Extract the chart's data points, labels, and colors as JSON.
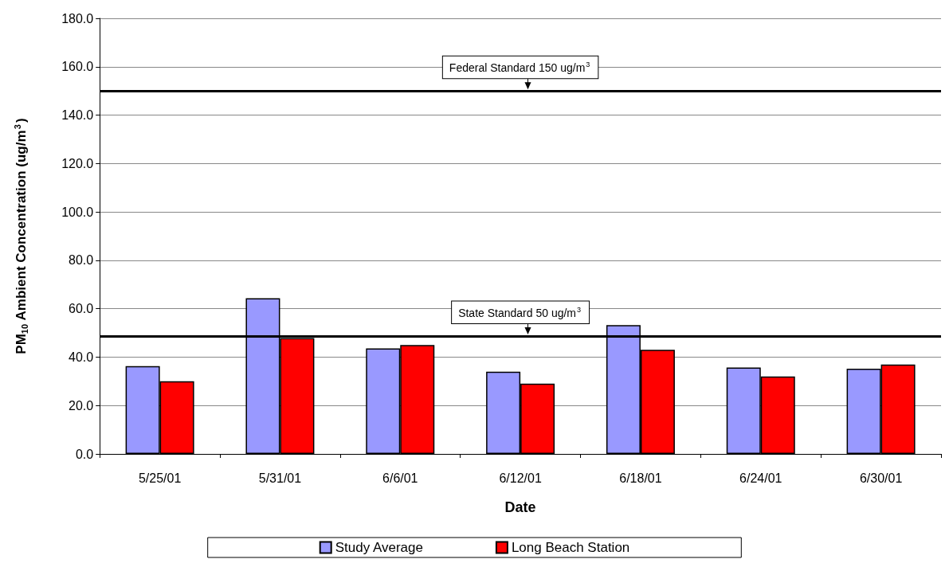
{
  "chart_data": {
    "type": "bar",
    "xlabel": "Date",
    "ylabel": "PM$_{10}$ Ambient Concentration (ug/m$^{3}$)",
    "categories": [
      "5/25/01",
      "5/31/01",
      "6/6/01",
      "6/12/01",
      "6/18/01",
      "6/24/01",
      "6/30/01"
    ],
    "series": [
      {
        "name": "Study Average",
        "color": "#9999ff",
        "values": [
          36.3,
          64.3,
          43.6,
          34.0,
          53.2,
          35.7,
          35.2
        ]
      },
      {
        "name": "Long Beach Station",
        "color": "#ff0000",
        "values": [
          30.0,
          47.9,
          45.0,
          29.0,
          43.0,
          32.0,
          36.9
        ]
      }
    ],
    "ylim": [
      0,
      180
    ],
    "yticks": [
      {
        "value": 0,
        "label": "0.0"
      },
      {
        "value": 20,
        "label": "20.0"
      },
      {
        "value": 40,
        "label": "40.0"
      },
      {
        "value": 60,
        "label": "60.0"
      },
      {
        "value": 80,
        "label": "80.0"
      },
      {
        "value": 100,
        "label": "100.0"
      },
      {
        "value": 120,
        "label": "120.0"
      },
      {
        "value": 140,
        "label": "140.0"
      },
      {
        "value": 160,
        "label": "160.0"
      },
      {
        "value": 180,
        "label": "180.0"
      }
    ],
    "grid": "y",
    "legend": "bottom",
    "ref_lines": [
      {
        "axis": "y",
        "value": 150,
        "label": "Federal Standard 150 ug/m$^{3}$",
        "color": "#000000"
      },
      {
        "axis": "y",
        "value": 48.7,
        "label": "State Standard 50 ug/m$^{3}$",
        "color": "#000000"
      }
    ]
  }
}
